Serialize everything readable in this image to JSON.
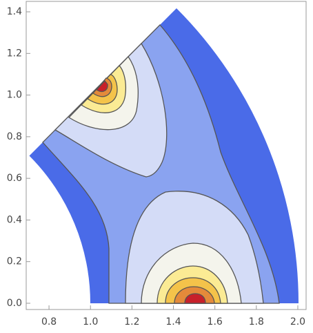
{
  "chart_data": {
    "type": "contour",
    "xlim": [
      0.69,
      2.04
    ],
    "ylim": [
      -0.03,
      1.45
    ],
    "xticks": [
      0.8,
      {
        "value": 1,
        "label": "1.0"
      },
      1.2,
      1.4,
      1.6,
      1.8,
      {
        "value": 2,
        "label": "2.0"
      }
    ],
    "yticks": [
      {
        "value": 0,
        "label": "0.0"
      },
      0.2,
      0.4,
      0.6,
      0.8,
      {
        "value": 1,
        "label": "1.0"
      },
      1.2,
      1.4
    ]
  }
}
